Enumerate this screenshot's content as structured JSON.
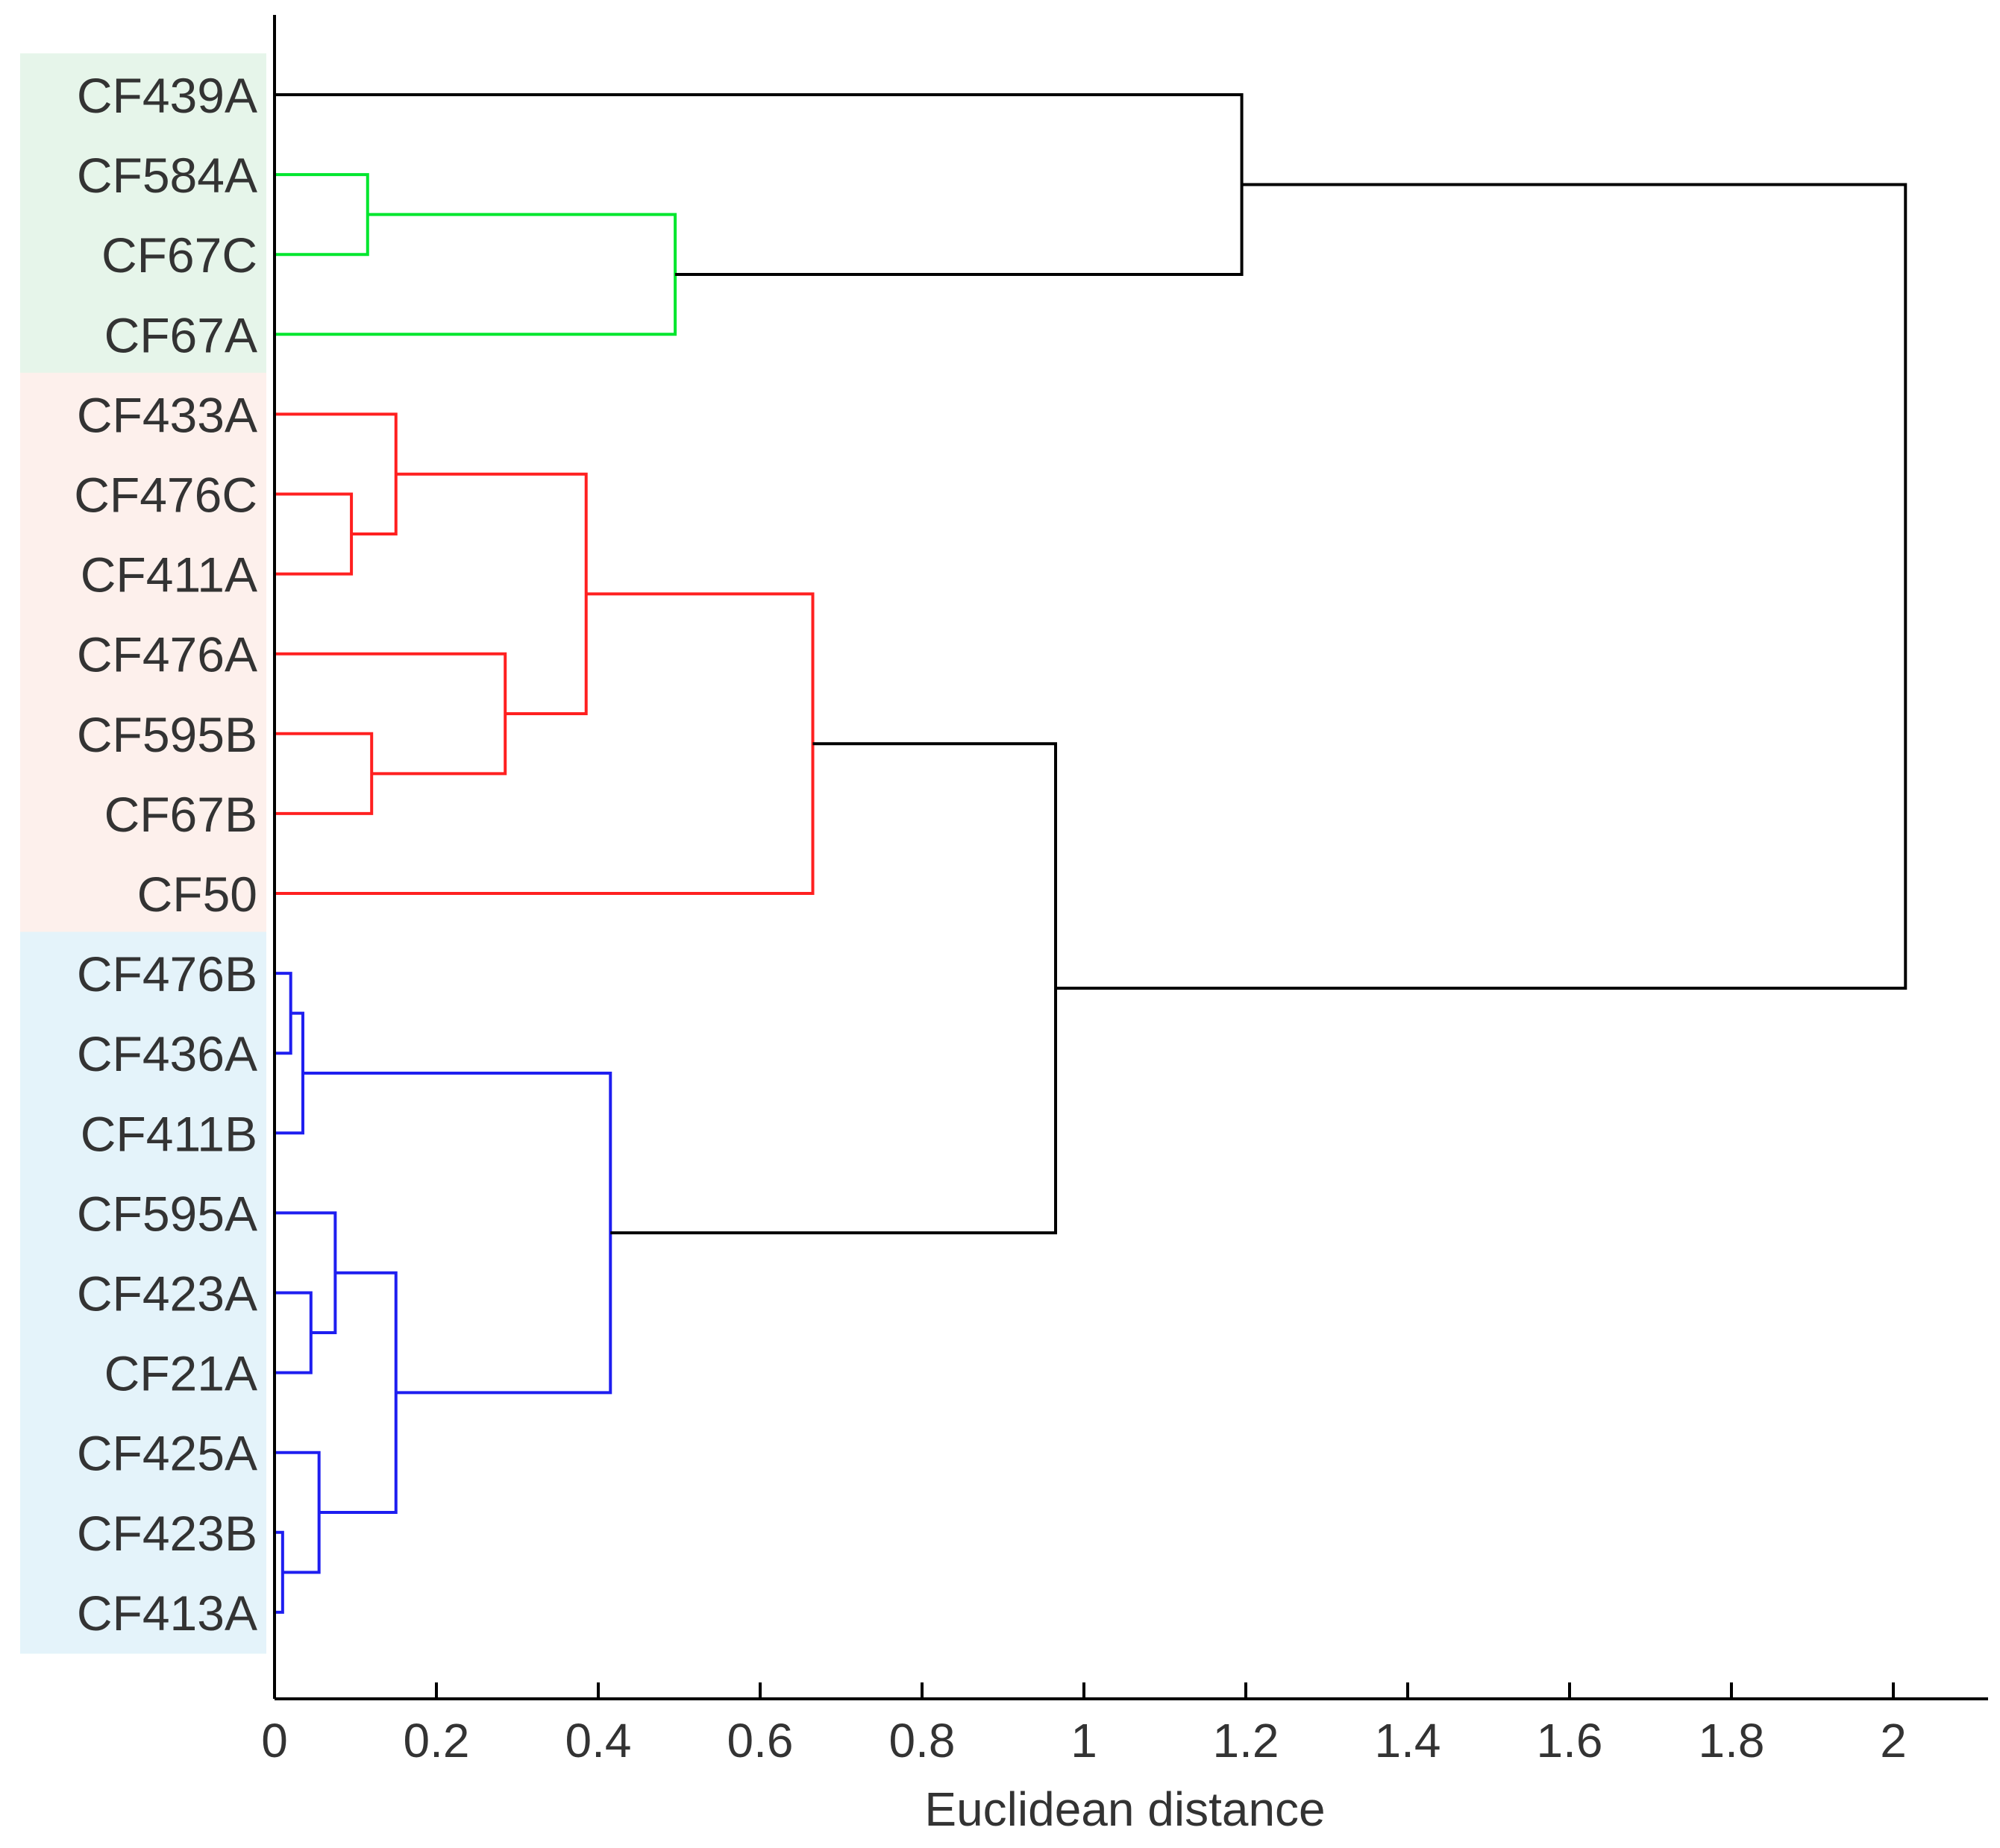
{
  "chart_data": {
    "type": "dendrogram",
    "orientation": "horizontal",
    "xlabel": "Euclidean distance",
    "xlim": [
      0,
      2.12
    ],
    "xticks": [
      0,
      0.2,
      0.4,
      0.6,
      0.8,
      1,
      1.2,
      1.4,
      1.6,
      1.8,
      2
    ],
    "xtick_labels": [
      "0",
      "0.2",
      "0.4",
      "0.6",
      "0.8",
      "1",
      "1.2",
      "1.4",
      "1.6",
      "1.8",
      "2"
    ],
    "leaves": [
      "CF439A",
      "CF584A",
      "CF67C",
      "CF67A",
      "CF433A",
      "CF476C",
      "CF411A",
      "CF476A",
      "CF595B",
      "CF67B",
      "CF50",
      "CF476B",
      "CF436A",
      "CF411B",
      "CF595A",
      "CF423A",
      "CF21A",
      "CF425A",
      "CF423B",
      "CF413A"
    ],
    "groups": [
      {
        "name": "green",
        "members": [
          "CF439A",
          "CF584A",
          "CF67C",
          "CF67A"
        ],
        "shade": "#e6f5ea",
        "line": "#00e62e"
      },
      {
        "name": "red",
        "members": [
          "CF433A",
          "CF476C",
          "CF411A",
          "CF476A",
          "CF595B",
          "CF67B",
          "CF50"
        ],
        "shade": "#fdf0ec",
        "line": "#ff2020"
      },
      {
        "name": "blue",
        "members": [
          "CF476B",
          "CF436A",
          "CF411B",
          "CF595A",
          "CF423A",
          "CF21A",
          "CF425A",
          "CF423B",
          "CF413A"
        ],
        "shade": "#e4f3fa",
        "line": "#1e1ef0"
      }
    ],
    "links": [
      {
        "left": "CF423B",
        "right": "CF413A",
        "height": 0.01,
        "color": "#1e1ef0"
      },
      {
        "left": "CF476B",
        "right": "CF436A",
        "height": 0.02,
        "color": "#1e1ef0"
      },
      {
        "left": 1,
        "right": "CF411B",
        "height": 0.035,
        "color": "#1e1ef0"
      },
      {
        "left": "CF423A",
        "right": "CF21A",
        "height": 0.045,
        "color": "#1e1ef0"
      },
      {
        "left": "CF425A",
        "right": 0,
        "height": 0.055,
        "color": "#1e1ef0"
      },
      {
        "left": "CF595A",
        "right": 3,
        "height": 0.075,
        "color": "#1e1ef0"
      },
      {
        "left": "CF476C",
        "right": "CF411A",
        "height": 0.095,
        "color": "#ff2020"
      },
      {
        "left": "CF584A",
        "right": "CF67C",
        "height": 0.115,
        "color": "#00e62e"
      },
      {
        "left": "CF595B",
        "right": "CF67B",
        "height": 0.12,
        "color": "#ff2020"
      },
      {
        "left": "CF433A",
        "right": 6,
        "height": 0.15,
        "color": "#ff2020"
      },
      {
        "left": 5,
        "right": 4,
        "height": 0.15,
        "color": "#1e1ef0"
      },
      {
        "left": "CF476A",
        "right": 8,
        "height": 0.285,
        "color": "#ff2020"
      },
      {
        "left": 9,
        "right": 11,
        "height": 0.385,
        "color": "#ff2020"
      },
      {
        "left": 2,
        "right": 10,
        "height": 0.415,
        "color": "#1e1ef0"
      },
      {
        "left": 7,
        "right": "CF67A",
        "height": 0.495,
        "color": "#00e62e"
      },
      {
        "left": 12,
        "right": "CF50",
        "height": 0.665,
        "color": "#ff2020"
      },
      {
        "left": 15,
        "right": 13,
        "height": 0.965,
        "color": "#000000"
      },
      {
        "left": "CF439A",
        "right": 14,
        "height": 1.195,
        "color": "#000000"
      },
      {
        "left": 17,
        "right": 16,
        "height": 2.015,
        "color": "#000000"
      }
    ]
  }
}
